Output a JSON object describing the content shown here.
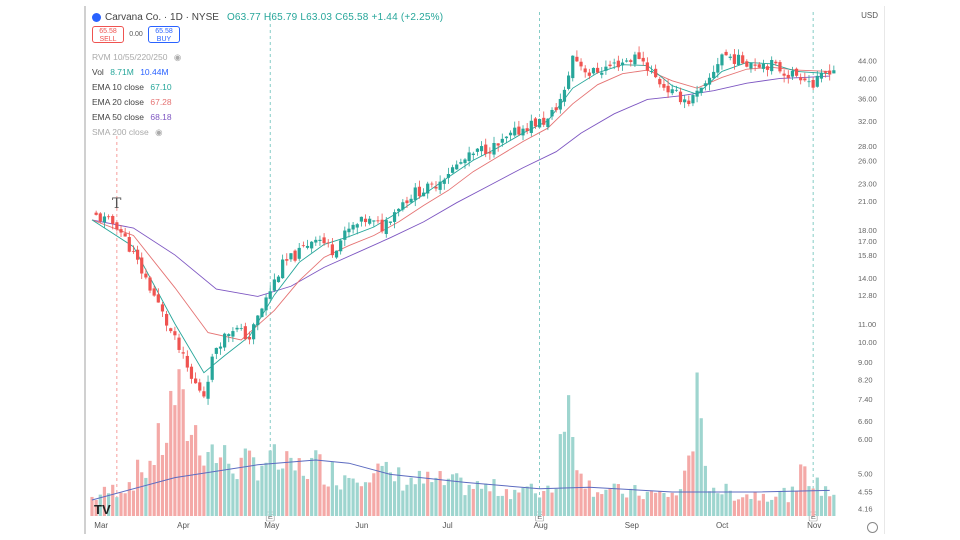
{
  "header": {
    "title": "Carvana Co. · 1D · NYSE",
    "ohlc": "O63.77 H65.79 L63.03 C65.58 +1.44 (+2.25%)"
  },
  "trade": {
    "sell_price": "65.58",
    "sell_label": "SELL",
    "spread": "0.00",
    "buy_price": "65.58",
    "buy_label": "BUY"
  },
  "indicators": [
    {
      "name": "RVM 10/55/220/250",
      "value": "",
      "color": "#aaaaaa",
      "faded": true
    },
    {
      "name": "Vol",
      "value": "8.71M",
      "value2": "10.44M",
      "color": "#26a69a"
    },
    {
      "name": "EMA 10 close",
      "value": "67.10",
      "color": "#26a69a"
    },
    {
      "name": "EMA 20 close",
      "value": "67.28",
      "color": "#e57373"
    },
    {
      "name": "EMA 50 close",
      "value": "68.18",
      "color": "#7e57c2"
    },
    {
      "name": "SMA 200 close",
      "value": "",
      "color": "#aaaaaa",
      "faded": true
    }
  ],
  "currency": "USD",
  "colors": {
    "up": "#26a69a",
    "down": "#ef5350",
    "ema10": "#26a69a",
    "ema20": "#e57373",
    "ema50": "#7e57c2",
    "vol_up": "#9ed5cf",
    "vol_down": "#f4a9a7",
    "vol_ma": "#5c6bc0",
    "event_line": "#26a69a"
  },
  "icons": [
    "tradingview-logo-icon",
    "text-tool-icon",
    "settings-icon"
  ],
  "chart_data": {
    "type": "candlestick",
    "title": "Carvana Co. · 1D · NYSE",
    "yscale": "log",
    "ylim": [
      4.0,
      50.0
    ],
    "y_ticks": [
      "44.00",
      "40.00",
      "36.00",
      "32.00",
      "28.00",
      "26.00",
      "23.00",
      "21.00",
      "18.00",
      "17.00",
      "15.80",
      "14.00",
      "12.80",
      "11.00",
      "10.00",
      "9.00",
      "8.20",
      "7.40",
      "6.60",
      "6.00",
      "5.00",
      "4.55",
      "4.16"
    ],
    "months": [
      "Mar",
      "Apr",
      "May",
      "Jun",
      "Jul",
      "Aug",
      "Sep",
      "Oct",
      "Nov"
    ],
    "event_markers": [
      {
        "label": "E",
        "month_index": 2
      },
      {
        "label": "E",
        "month_index": 5
      },
      {
        "label": "E",
        "month_index": 8
      }
    ],
    "close_path": [
      [
        0,
        19.5
      ],
      [
        6,
        18.5
      ],
      [
        12,
        14.5
      ],
      [
        18,
        11.0
      ],
      [
        24,
        8.2
      ],
      [
        27,
        7.6
      ],
      [
        30,
        9.8
      ],
      [
        34,
        10.8
      ],
      [
        38,
        10.2
      ],
      [
        42,
        12.5
      ],
      [
        46,
        15.0
      ],
      [
        50,
        16.0
      ],
      [
        54,
        17.5
      ],
      [
        58,
        16.2
      ],
      [
        62,
        18.0
      ],
      [
        66,
        19.0
      ],
      [
        70,
        18.3
      ],
      [
        74,
        20.5
      ],
      [
        78,
        22.0
      ],
      [
        82,
        22.5
      ],
      [
        86,
        24.5
      ],
      [
        90,
        26.0
      ],
      [
        94,
        27.5
      ],
      [
        98,
        28.0
      ],
      [
        102,
        30.0
      ],
      [
        106,
        31.5
      ],
      [
        110,
        32.0
      ],
      [
        114,
        37.0
      ],
      [
        116,
        45.0
      ],
      [
        120,
        41.0
      ],
      [
        126,
        43.0
      ],
      [
        132,
        45.0
      ],
      [
        136,
        40.0
      ],
      [
        140,
        37.0
      ],
      [
        144,
        35.5
      ],
      [
        148,
        38.0
      ],
      [
        152,
        45.5
      ],
      [
        156,
        44.0
      ],
      [
        160,
        43.5
      ],
      [
        164,
        43.0
      ],
      [
        168,
        41.0
      ],
      [
        172,
        40.5
      ],
      [
        174,
        38.5
      ],
      [
        178,
        42.0
      ]
    ],
    "ema10": [
      [
        0,
        19.0
      ],
      [
        10,
        16.5
      ],
      [
        20,
        11.0
      ],
      [
        27,
        8.5
      ],
      [
        32,
        9.3
      ],
      [
        38,
        10.3
      ],
      [
        44,
        12.8
      ],
      [
        50,
        15.2
      ],
      [
        56,
        16.7
      ],
      [
        62,
        17.4
      ],
      [
        68,
        18.3
      ],
      [
        74,
        19.8
      ],
      [
        80,
        21.7
      ],
      [
        86,
        23.8
      ],
      [
        92,
        26.0
      ],
      [
        98,
        27.8
      ],
      [
        104,
        30.0
      ],
      [
        110,
        32.0
      ],
      [
        116,
        38.0
      ],
      [
        122,
        41.2
      ],
      [
        128,
        43.0
      ],
      [
        134,
        42.8
      ],
      [
        140,
        38.5
      ],
      [
        146,
        36.8
      ],
      [
        152,
        41.5
      ],
      [
        158,
        43.5
      ],
      [
        164,
        43.2
      ],
      [
        170,
        41.5
      ],
      [
        178,
        41.0
      ]
    ],
    "ema20": [
      [
        0,
        19.0
      ],
      [
        10,
        17.5
      ],
      [
        20,
        13.3
      ],
      [
        28,
        10.5
      ],
      [
        36,
        10.1
      ],
      [
        44,
        11.8
      ],
      [
        50,
        13.8
      ],
      [
        56,
        15.6
      ],
      [
        62,
        16.6
      ],
      [
        68,
        17.5
      ],
      [
        74,
        18.8
      ],
      [
        80,
        20.5
      ],
      [
        86,
        22.2
      ],
      [
        92,
        24.5
      ],
      [
        98,
        26.5
      ],
      [
        104,
        28.7
      ],
      [
        110,
        30.8
      ],
      [
        116,
        35.0
      ],
      [
        122,
        38.7
      ],
      [
        128,
        41.0
      ],
      [
        134,
        41.8
      ],
      [
        140,
        39.5
      ],
      [
        146,
        38.0
      ],
      [
        152,
        40.2
      ],
      [
        158,
        42.0
      ],
      [
        164,
        42.4
      ],
      [
        170,
        41.8
      ],
      [
        178,
        41.5
      ]
    ],
    "ema50": [
      [
        0,
        19.0
      ],
      [
        10,
        18.2
      ],
      [
        20,
        15.8
      ],
      [
        30,
        13.2
      ],
      [
        40,
        12.7
      ],
      [
        48,
        13.4
      ],
      [
        56,
        14.8
      ],
      [
        64,
        16.0
      ],
      [
        72,
        17.3
      ],
      [
        80,
        18.8
      ],
      [
        88,
        20.8
      ],
      [
        96,
        22.8
      ],
      [
        104,
        25.0
      ],
      [
        112,
        27.2
      ],
      [
        118,
        30.0
      ],
      [
        126,
        33.2
      ],
      [
        134,
        35.8
      ],
      [
        142,
        36.5
      ],
      [
        150,
        37.5
      ],
      [
        158,
        39.0
      ],
      [
        166,
        40.0
      ],
      [
        172,
        40.2
      ],
      [
        178,
        40.5
      ]
    ],
    "volume_path": [
      [
        0,
        1.2
      ],
      [
        8,
        2.0
      ],
      [
        14,
        3.5
      ],
      [
        18,
        5.5
      ],
      [
        20,
        8.2
      ],
      [
        22,
        6.5
      ],
      [
        26,
        5.0
      ],
      [
        30,
        4.0
      ],
      [
        36,
        3.2
      ],
      [
        42,
        3.8
      ],
      [
        48,
        3.0
      ],
      [
        54,
        3.4
      ],
      [
        60,
        2.6
      ],
      [
        66,
        3.2
      ],
      [
        72,
        2.6
      ],
      [
        78,
        2.3
      ],
      [
        84,
        2.2
      ],
      [
        90,
        2.0
      ],
      [
        96,
        1.8
      ],
      [
        102,
        1.7
      ],
      [
        108,
        1.6
      ],
      [
        112,
        2.2
      ],
      [
        114,
        8.5
      ],
      [
        116,
        5.0
      ],
      [
        120,
        2.0
      ],
      [
        126,
        1.6
      ],
      [
        132,
        1.5
      ],
      [
        138,
        1.4
      ],
      [
        142,
        1.5
      ],
      [
        146,
        7.2
      ],
      [
        148,
        2.6
      ],
      [
        152,
        1.6
      ],
      [
        158,
        1.4
      ],
      [
        164,
        1.5
      ],
      [
        170,
        1.4
      ],
      [
        172,
        3.8
      ],
      [
        174,
        2.0
      ],
      [
        178,
        1.6
      ]
    ],
    "volume_ma": [
      [
        0,
        1.0
      ],
      [
        20,
        2.4
      ],
      [
        40,
        3.2
      ],
      [
        54,
        3.5
      ],
      [
        62,
        3.3
      ],
      [
        72,
        2.6
      ],
      [
        90,
        2.1
      ],
      [
        108,
        1.7
      ],
      [
        120,
        1.8
      ],
      [
        140,
        1.5
      ],
      [
        160,
        1.5
      ],
      [
        178,
        1.6
      ]
    ]
  }
}
